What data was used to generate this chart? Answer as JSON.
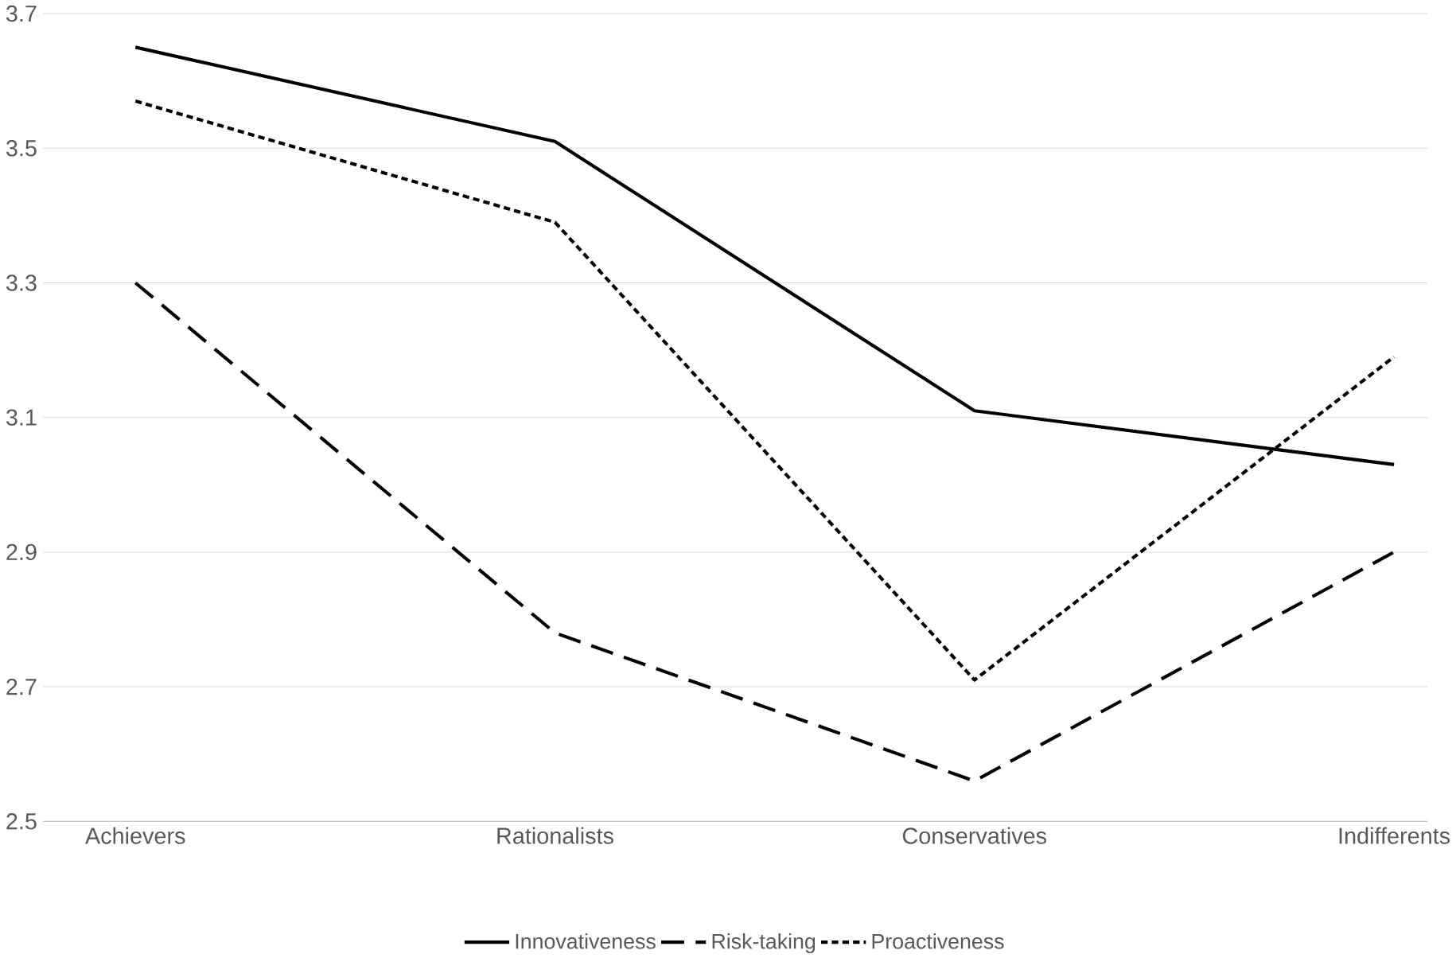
{
  "chart_data": {
    "type": "line",
    "categories": [
      "Achievers",
      "Rationalists",
      "Conservatives",
      "Indifferents"
    ],
    "series": [
      {
        "name": "Innovativeness",
        "color": "#000000",
        "line_style": "solid",
        "values": [
          3.65,
          3.51,
          3.11,
          3.03
        ]
      },
      {
        "name": "Risk-taking",
        "color": "#000000",
        "line_style": "dashed",
        "values": [
          3.3,
          2.78,
          2.56,
          2.9
        ]
      },
      {
        "name": "Proactiveness",
        "color": "#000000",
        "line_style": "dotted",
        "values": [
          3.57,
          3.39,
          2.71,
          3.19
        ]
      }
    ],
    "ylim": [
      2.5,
      3.7
    ],
    "yticks": [
      2.5,
      2.7,
      2.9,
      3.1,
      3.3,
      3.5,
      3.7
    ],
    "grid": "y",
    "legend": "bottom"
  }
}
